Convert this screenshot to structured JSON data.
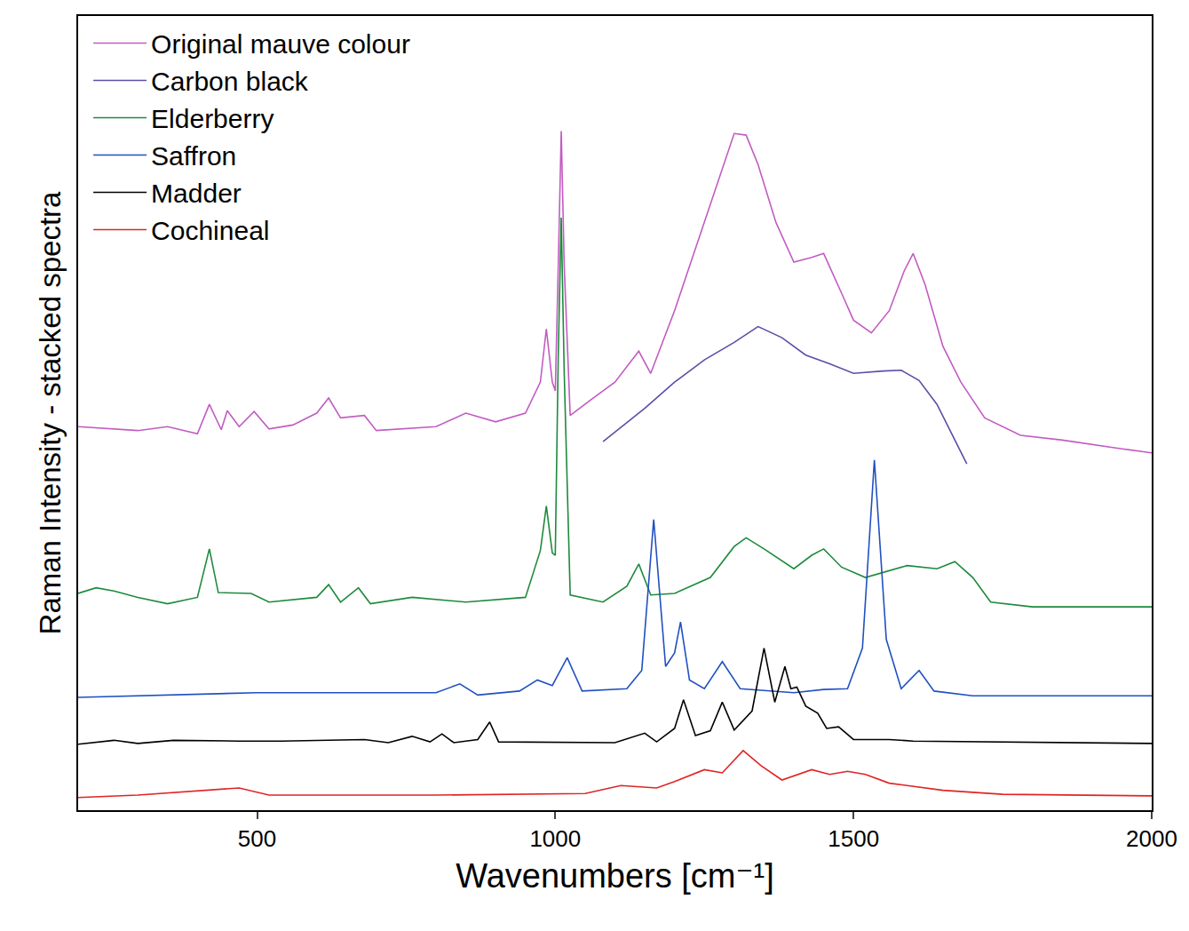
{
  "chart_data": {
    "type": "line",
    "x_label": "Wavenumbers [cm⁻¹]",
    "y_label": "Raman Intensity - stacked spectra",
    "xlim": [
      200,
      2000
    ],
    "xticks": [
      500,
      1000,
      1500,
      2000
    ],
    "ylim": [
      0,
      100
    ],
    "yticks": [],
    "tick_labels": "x",
    "legend": "top-left",
    "grid": false,
    "series": [
      {
        "name": "Original mauve colour",
        "color": "#c25cc2",
        "x": [
          200,
          300,
          350,
          400,
          420,
          440,
          450,
          470,
          495,
          520,
          560,
          600,
          620,
          640,
          680,
          700,
          800,
          850,
          900,
          950,
          975,
          985,
          995,
          1000,
          1005,
          1010,
          1015,
          1025,
          1060,
          1100,
          1140,
          1160,
          1200,
          1250,
          1280,
          1300,
          1320,
          1340,
          1370,
          1400,
          1430,
          1450,
          1480,
          1500,
          1530,
          1560,
          1585,
          1600,
          1620,
          1650,
          1680,
          1720,
          1780,
          1850,
          1950,
          2000
        ],
        "values": [
          48.3,
          47.8,
          48.3,
          47.4,
          51.1,
          47.9,
          50.3,
          48.3,
          50.2,
          48.0,
          48.5,
          50.0,
          51.9,
          49.4,
          49.7,
          47.8,
          48.3,
          50.0,
          48.9,
          50.0,
          53.9,
          60.6,
          53.9,
          52.8,
          68.5,
          85.5,
          68.5,
          49.7,
          51.7,
          53.9,
          57.8,
          55.0,
          62.9,
          74.0,
          80.8,
          85.2,
          85.0,
          81.3,
          74.0,
          69.0,
          69.6,
          70.1,
          65.1,
          61.7,
          60.1,
          62.9,
          67.9,
          70.1,
          66.2,
          58.4,
          53.9,
          49.4,
          47.2,
          46.6,
          45.5,
          45.0
        ]
      },
      {
        "name": "Carbon black",
        "color": "#5a4fa8",
        "x": [
          1080,
          1150,
          1200,
          1250,
          1300,
          1340,
          1380,
          1420,
          1460,
          1500,
          1550,
          1580,
          1610,
          1640,
          1670,
          1690
        ],
        "values": [
          46.4,
          50.6,
          53.9,
          56.7,
          58.9,
          60.9,
          59.5,
          57.3,
          56.2,
          55.0,
          55.3,
          55.4,
          54.1,
          51.1,
          46.6,
          43.6
        ]
      },
      {
        "name": "Elderberry",
        "color": "#1e8a3c",
        "x": [
          200,
          230,
          260,
          300,
          350,
          400,
          420,
          435,
          490,
          520,
          600,
          620,
          640,
          670,
          690,
          760,
          850,
          950,
          975,
          985,
          995,
          1000,
          1005,
          1010,
          1015,
          1025,
          1080,
          1120,
          1140,
          1160,
          1200,
          1260,
          1300,
          1320,
          1350,
          1400,
          1430,
          1450,
          1480,
          1520,
          1590,
          1640,
          1670,
          1700,
          1730,
          1800,
          2000
        ],
        "values": [
          27.3,
          28.0,
          27.6,
          26.8,
          26.0,
          26.8,
          32.9,
          27.4,
          27.3,
          26.2,
          26.8,
          28.4,
          26.2,
          28.0,
          26.0,
          26.8,
          26.2,
          26.8,
          32.7,
          38.3,
          32.4,
          32.1,
          57.3,
          74.6,
          55.0,
          27.1,
          26.2,
          28.2,
          31.0,
          27.1,
          27.3,
          29.3,
          33.2,
          34.3,
          32.9,
          30.4,
          32.1,
          32.9,
          30.6,
          29.3,
          30.8,
          30.4,
          31.3,
          29.3,
          26.2,
          25.6,
          25.6
        ]
      },
      {
        "name": "Saffron",
        "color": "#2050c0",
        "x": [
          200,
          500,
          800,
          840,
          870,
          940,
          970,
          995,
          1020,
          1045,
          1120,
          1145,
          1165,
          1185,
          1200,
          1210,
          1225,
          1250,
          1280,
          1310,
          1400,
          1450,
          1490,
          1515,
          1535,
          1555,
          1580,
          1610,
          1635,
          1700,
          2000
        ],
        "values": [
          14.2,
          14.8,
          14.8,
          15.9,
          14.5,
          15.0,
          16.4,
          15.7,
          19.2,
          15.0,
          15.3,
          17.6,
          36.6,
          18.1,
          19.8,
          23.7,
          16.4,
          15.3,
          18.7,
          15.3,
          14.8,
          15.2,
          15.3,
          20.4,
          44.1,
          21.5,
          15.3,
          17.6,
          15.0,
          14.4,
          14.4
        ]
      },
      {
        "name": "Madder",
        "color": "#000000",
        "x": [
          200,
          260,
          300,
          360,
          470,
          540,
          680,
          720,
          760,
          790,
          810,
          830,
          870,
          890,
          905,
          1100,
          1150,
          1170,
          1200,
          1215,
          1235,
          1260,
          1280,
          1300,
          1330,
          1350,
          1368,
          1385,
          1395,
          1405,
          1420,
          1440,
          1455,
          1475,
          1500,
          1560,
          1600,
          2000
        ],
        "values": [
          8.3,
          8.8,
          8.4,
          8.8,
          8.7,
          8.7,
          8.9,
          8.5,
          9.3,
          8.6,
          9.6,
          8.5,
          8.9,
          11.1,
          8.6,
          8.5,
          9.7,
          8.6,
          10.3,
          13.9,
          9.4,
          10.0,
          13.6,
          10.1,
          12.5,
          20.4,
          13.6,
          18.1,
          15.3,
          15.5,
          13.1,
          12.2,
          10.3,
          10.5,
          8.9,
          8.9,
          8.7,
          8.4
        ]
      },
      {
        "name": "Cochineal",
        "color": "#e02424",
        "x": [
          200,
          300,
          470,
          520,
          800,
          1050,
          1110,
          1170,
          1200,
          1250,
          1280,
          1315,
          1345,
          1380,
          1430,
          1460,
          1490,
          1520,
          1560,
          1650,
          1750,
          2000
        ],
        "values": [
          1.6,
          1.9,
          2.8,
          1.9,
          1.9,
          2.1,
          3.1,
          2.8,
          3.6,
          5.1,
          4.7,
          7.5,
          5.6,
          3.8,
          5.1,
          4.5,
          4.9,
          4.5,
          3.4,
          2.5,
          2.0,
          1.8
        ]
      }
    ]
  }
}
